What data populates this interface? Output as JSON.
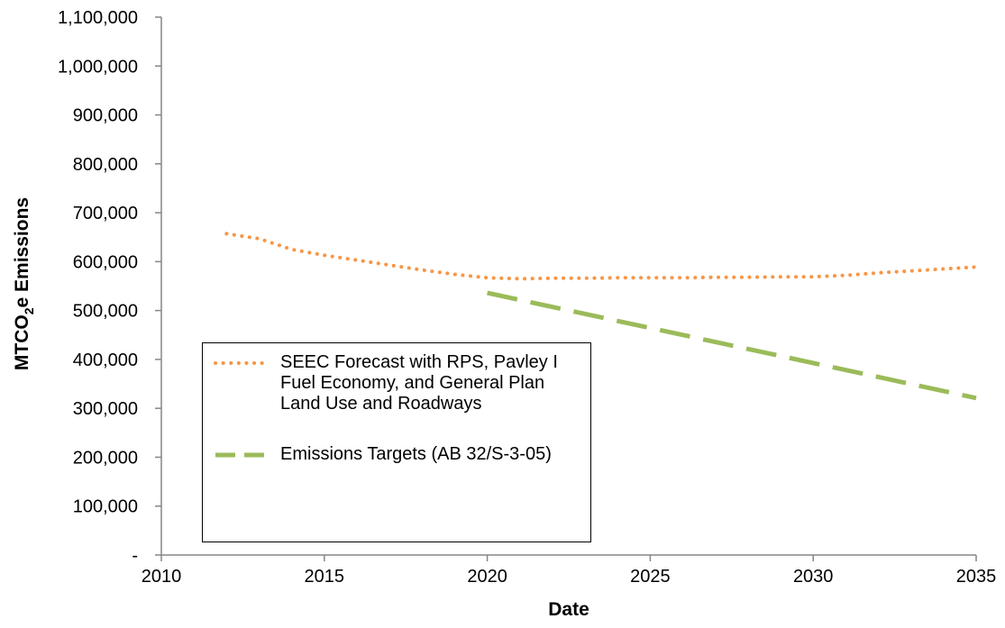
{
  "chart_data": {
    "type": "line",
    "xlabel": "Date",
    "ylabel": "MTCO2e Emissions",
    "ylabel_parts": {
      "main": "MTCO",
      "sub": "2",
      "rest": "e Emissions"
    },
    "xlim": [
      2010,
      2035
    ],
    "ylim": [
      0,
      1100000
    ],
    "x_ticks": [
      2010,
      2015,
      2020,
      2025,
      2030,
      2035
    ],
    "x_tick_labels": [
      "2010",
      "2015",
      "2020",
      "2025",
      "2030",
      "2035"
    ],
    "y_ticks": [
      0,
      100000,
      200000,
      300000,
      400000,
      500000,
      600000,
      700000,
      800000,
      900000,
      1000000,
      1100000
    ],
    "y_tick_labels": [
      "-",
      "100,000",
      "200,000",
      "300,000",
      "400,000",
      "500,000",
      "600,000",
      "700,000",
      "800,000",
      "900,000",
      "1,000,000",
      "1,100,000"
    ],
    "grid": false,
    "legend_position": "bottom-left",
    "series": [
      {
        "name": "SEEC Forecast with RPS, Pavley I Fuel Economy, and General Plan Land Use and Roadways",
        "color": "#F79646",
        "style": "dotted",
        "x": [
          2012,
          2013,
          2014,
          2015,
          2016,
          2017,
          2018,
          2019,
          2020,
          2021,
          2022,
          2023,
          2024,
          2025,
          2026,
          2027,
          2028,
          2029,
          2030,
          2031,
          2032,
          2033,
          2034,
          2035
        ],
        "y": [
          657000,
          647000,
          625000,
          613000,
          603000,
          593000,
          583000,
          574000,
          567000,
          565000,
          566000,
          566000,
          567000,
          567000,
          567000,
          568000,
          568000,
          569000,
          569000,
          572000,
          577000,
          581000,
          585000,
          589000
        ]
      },
      {
        "name": "Emissions Targets (AB 32/S-3-05)",
        "color": "#9BBB59",
        "style": "dashed",
        "x": [
          2020,
          2035
        ],
        "y": [
          536000,
          321000
        ]
      }
    ]
  }
}
